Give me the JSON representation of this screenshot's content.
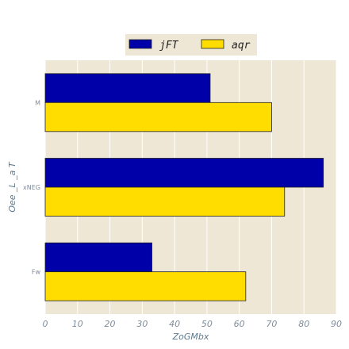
{
  "chart_data": {
    "type": "bar",
    "orientation": "horizontal",
    "categories": [
      "M",
      "xNEG",
      "Fw"
    ],
    "series": [
      {
        "name": "jFT",
        "values": [
          51,
          86,
          33
        ],
        "color": "#0000a8"
      },
      {
        "name": "aqr",
        "values": [
          70,
          74,
          62
        ],
        "color": "#ffdd00"
      }
    ],
    "xlabel": "ZoGMbx",
    "ylabel": "Oee _L _a T",
    "xlim": [
      0,
      90
    ],
    "xticks": [
      0,
      10,
      20,
      30,
      40,
      50,
      60,
      70,
      80,
      90
    ],
    "grid": true,
    "legend_position": "top-center",
    "background_color": "#efe7d6",
    "bar_edge_color": "#222222"
  }
}
